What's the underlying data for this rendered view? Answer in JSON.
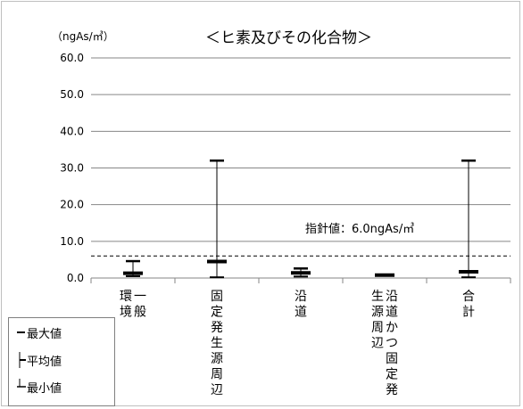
{
  "chart_data": {
    "type": "errorbar",
    "title": "＜ヒ素及びその化合物＞",
    "unit": "（ngAs/㎥）",
    "ylim": [
      0,
      60
    ],
    "yticks": [
      "60.0",
      "50.0",
      "40.0",
      "30.0",
      "20.0",
      "10.0",
      "0.0"
    ],
    "grid": true,
    "categories": [
      "一般環境",
      "固定発生源周辺",
      "沿道",
      "沿道かつ固定発生源周辺",
      "合計"
    ],
    "category_lines": [
      [
        "一般",
        "環境"
      ],
      [
        "固定発生源周辺"
      ],
      [
        "沿道"
      ],
      [
        "沿道かつ固定発",
        "生源周辺"
      ],
      [
        "合計"
      ]
    ],
    "series": {
      "max": [
        4.6,
        32.0,
        2.6,
        0.9,
        32.0
      ],
      "mean": [
        1.3,
        4.5,
        1.4,
        0.8,
        1.7
      ],
      "min": [
        0.5,
        0.2,
        0.4,
        0.7,
        0.2
      ]
    },
    "guideline": {
      "value": 6.0,
      "label": "指針値：6.0ngAs/㎥"
    },
    "legend": {
      "position": "bottom-left",
      "items": [
        "最大値",
        "平均値",
        "最小値"
      ]
    }
  }
}
